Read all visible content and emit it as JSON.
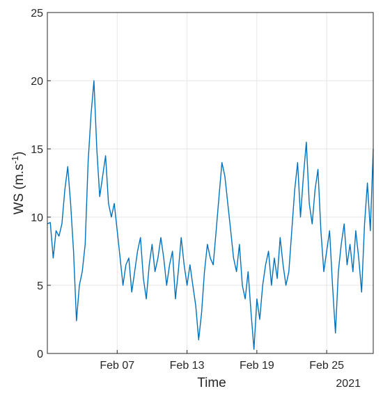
{
  "chart_data": {
    "type": "line",
    "title": "",
    "xlabel": "Time",
    "ylabel_main": "WS (m.s",
    "ylabel_sup": "-1",
    "ylabel_close": ")",
    "year_label": "2021",
    "grid": true,
    "ylim": [
      0,
      25
    ],
    "yticks": [
      0,
      5,
      10,
      15,
      20,
      25
    ],
    "xlim": [
      "2021-02-01",
      "2021-03-01"
    ],
    "xticks": [
      {
        "date": "2021-02-07",
        "label": "Feb 07"
      },
      {
        "date": "2021-02-13",
        "label": "Feb 13"
      },
      {
        "date": "2021-02-19",
        "label": "Feb 19"
      },
      {
        "date": "2021-02-25",
        "label": "Feb 25"
      }
    ],
    "series": [
      {
        "color": "#0072BD",
        "points": [
          [
            "2021-02-01",
            9.5
          ],
          [
            "2021-02-01 06:00",
            9.6
          ],
          [
            "2021-02-01 12:00",
            7.0
          ],
          [
            "2021-02-01 18:00",
            9.0
          ],
          [
            "2021-02-02 00:00",
            8.6
          ],
          [
            "2021-02-02 06:00",
            9.5
          ],
          [
            "2021-02-02 12:00",
            12.0
          ],
          [
            "2021-02-02 18:00",
            13.7
          ],
          [
            "2021-02-03 00:00",
            11.0
          ],
          [
            "2021-02-03 06:00",
            7.5
          ],
          [
            "2021-02-03 12:00",
            2.4
          ],
          [
            "2021-02-03 18:00",
            5.0
          ],
          [
            "2021-02-04 00:00",
            6.0
          ],
          [
            "2021-02-04 06:00",
            8.0
          ],
          [
            "2021-02-04 12:00",
            14.0
          ],
          [
            "2021-02-04 18:00",
            17.5
          ],
          [
            "2021-02-05 00:00",
            20.0
          ],
          [
            "2021-02-05 06:00",
            15.0
          ],
          [
            "2021-02-05 12:00",
            11.5
          ],
          [
            "2021-02-05 18:00",
            13.0
          ],
          [
            "2021-02-06 00:00",
            14.5
          ],
          [
            "2021-02-06 06:00",
            11.0
          ],
          [
            "2021-02-06 12:00",
            10.0
          ],
          [
            "2021-02-06 18:00",
            11.0
          ],
          [
            "2021-02-07 00:00",
            9.0
          ],
          [
            "2021-02-07 06:00",
            7.0
          ],
          [
            "2021-02-07 12:00",
            5.0
          ],
          [
            "2021-02-07 18:00",
            6.5
          ],
          [
            "2021-02-08 00:00",
            7.0
          ],
          [
            "2021-02-08 06:00",
            4.5
          ],
          [
            "2021-02-08 12:00",
            6.0
          ],
          [
            "2021-02-08 18:00",
            7.5
          ],
          [
            "2021-02-09 00:00",
            8.5
          ],
          [
            "2021-02-09 06:00",
            5.5
          ],
          [
            "2021-02-09 12:00",
            4.0
          ],
          [
            "2021-02-09 18:00",
            6.5
          ],
          [
            "2021-02-10 00:00",
            8.0
          ],
          [
            "2021-02-10 06:00",
            6.0
          ],
          [
            "2021-02-10 12:00",
            7.0
          ],
          [
            "2021-02-10 18:00",
            8.5
          ],
          [
            "2021-02-11 00:00",
            7.0
          ],
          [
            "2021-02-11 06:00",
            5.0
          ],
          [
            "2021-02-11 12:00",
            6.5
          ],
          [
            "2021-02-11 18:00",
            7.5
          ],
          [
            "2021-02-12 00:00",
            4.0
          ],
          [
            "2021-02-12 06:00",
            6.0
          ],
          [
            "2021-02-12 12:00",
            8.5
          ],
          [
            "2021-02-12 18:00",
            6.5
          ],
          [
            "2021-02-13 00:00",
            5.0
          ],
          [
            "2021-02-13 06:00",
            6.5
          ],
          [
            "2021-02-13 12:00",
            5.0
          ],
          [
            "2021-02-13 18:00",
            3.5
          ],
          [
            "2021-02-14 00:00",
            1.0
          ],
          [
            "2021-02-14 06:00",
            3.0
          ],
          [
            "2021-02-14 12:00",
            6.0
          ],
          [
            "2021-02-14 18:00",
            8.0
          ],
          [
            "2021-02-15 00:00",
            7.0
          ],
          [
            "2021-02-15 06:00",
            6.5
          ],
          [
            "2021-02-15 12:00",
            9.0
          ],
          [
            "2021-02-15 18:00",
            11.5
          ],
          [
            "2021-02-16 00:00",
            14.0
          ],
          [
            "2021-02-16 06:00",
            13.0
          ],
          [
            "2021-02-16 12:00",
            11.0
          ],
          [
            "2021-02-16 18:00",
            9.0
          ],
          [
            "2021-02-17 00:00",
            7.0
          ],
          [
            "2021-02-17 06:00",
            6.0
          ],
          [
            "2021-02-17 12:00",
            8.0
          ],
          [
            "2021-02-17 18:00",
            5.0
          ],
          [
            "2021-02-18 00:00",
            4.0
          ],
          [
            "2021-02-18 06:00",
            6.0
          ],
          [
            "2021-02-18 12:00",
            3.0
          ],
          [
            "2021-02-18 18:00",
            0.3
          ],
          [
            "2021-02-19 00:00",
            4.0
          ],
          [
            "2021-02-19 06:00",
            2.5
          ],
          [
            "2021-02-19 12:00",
            5.0
          ],
          [
            "2021-02-19 18:00",
            6.5
          ],
          [
            "2021-02-20 00:00",
            7.5
          ],
          [
            "2021-02-20 06:00",
            5.0
          ],
          [
            "2021-02-20 12:00",
            7.0
          ],
          [
            "2021-02-20 18:00",
            5.5
          ],
          [
            "2021-02-21 00:00",
            8.5
          ],
          [
            "2021-02-21 06:00",
            6.5
          ],
          [
            "2021-02-21 12:00",
            5.0
          ],
          [
            "2021-02-21 18:00",
            6.0
          ],
          [
            "2021-02-22 00:00",
            9.0
          ],
          [
            "2021-02-22 06:00",
            12.0
          ],
          [
            "2021-02-22 12:00",
            14.0
          ],
          [
            "2021-02-22 18:00",
            10.0
          ],
          [
            "2021-02-23 00:00",
            13.0
          ],
          [
            "2021-02-23 06:00",
            15.5
          ],
          [
            "2021-02-23 12:00",
            11.0
          ],
          [
            "2021-02-23 18:00",
            9.5
          ],
          [
            "2021-02-24 00:00",
            12.0
          ],
          [
            "2021-02-24 06:00",
            13.5
          ],
          [
            "2021-02-24 12:00",
            9.0
          ],
          [
            "2021-02-24 18:00",
            6.0
          ],
          [
            "2021-02-25 00:00",
            7.5
          ],
          [
            "2021-02-25 06:00",
            9.0
          ],
          [
            "2021-02-25 12:00",
            5.0
          ],
          [
            "2021-02-25 18:00",
            1.5
          ],
          [
            "2021-02-26 00:00",
            6.0
          ],
          [
            "2021-02-26 06:00",
            8.0
          ],
          [
            "2021-02-26 12:00",
            9.5
          ],
          [
            "2021-02-26 18:00",
            6.5
          ],
          [
            "2021-02-27 00:00",
            8.0
          ],
          [
            "2021-02-27 06:00",
            6.0
          ],
          [
            "2021-02-27 12:00",
            9.0
          ],
          [
            "2021-02-27 18:00",
            7.0
          ],
          [
            "2021-02-28 00:00",
            4.5
          ],
          [
            "2021-02-28 06:00",
            9.5
          ],
          [
            "2021-02-28 12:00",
            12.5
          ],
          [
            "2021-02-28 18:00",
            9.0
          ],
          [
            "2021-03-01 00:00",
            15.0
          ]
        ]
      }
    ]
  }
}
